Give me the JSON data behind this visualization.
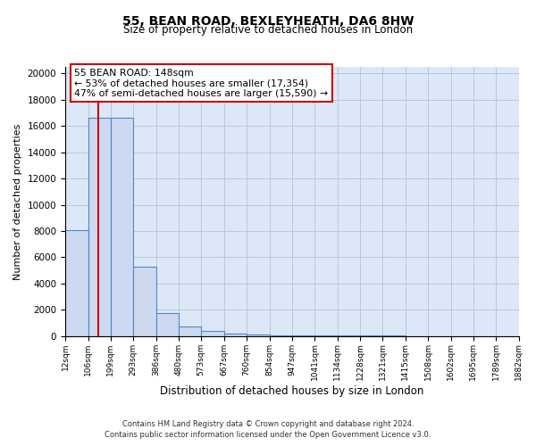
{
  "title": "55, BEAN ROAD, BEXLEYHEATH, DA6 8HW",
  "subtitle": "Size of property relative to detached houses in London",
  "xlabel": "Distribution of detached houses by size in London",
  "ylabel": "Number of detached properties",
  "footer1": "Contains HM Land Registry data © Crown copyright and database right 2024.",
  "footer2": "Contains public sector information licensed under the Open Government Licence v3.0.",
  "annotation_title": "55 BEAN ROAD: 148sqm",
  "annotation_line1": "← 53% of detached houses are smaller (17,354)",
  "annotation_line2": "47% of semi-detached houses are larger (15,590) →",
  "property_size_sqm": 148,
  "bar_edges": [
    12,
    106,
    199,
    293,
    386,
    480,
    573,
    667,
    760,
    854,
    947,
    1041,
    1134,
    1228,
    1321,
    1415,
    1508,
    1602,
    1695,
    1789,
    1882
  ],
  "bar_heights": [
    8050,
    16600,
    16600,
    5300,
    1750,
    700,
    380,
    200,
    120,
    70,
    50,
    35,
    25,
    20,
    15,
    12,
    10,
    8,
    6,
    5
  ],
  "bar_color": "#ccd9f0",
  "bar_edge_color": "#5585c8",
  "vline_color": "#cc0000",
  "vline_x": 148,
  "ylim": [
    0,
    20500
  ],
  "yticks": [
    0,
    2000,
    4000,
    6000,
    8000,
    10000,
    12000,
    14000,
    16000,
    18000,
    20000
  ],
  "annotation_box_color": "#cc0000",
  "bg_color": "#dce8f8",
  "grid_color": "#b8c8d8"
}
